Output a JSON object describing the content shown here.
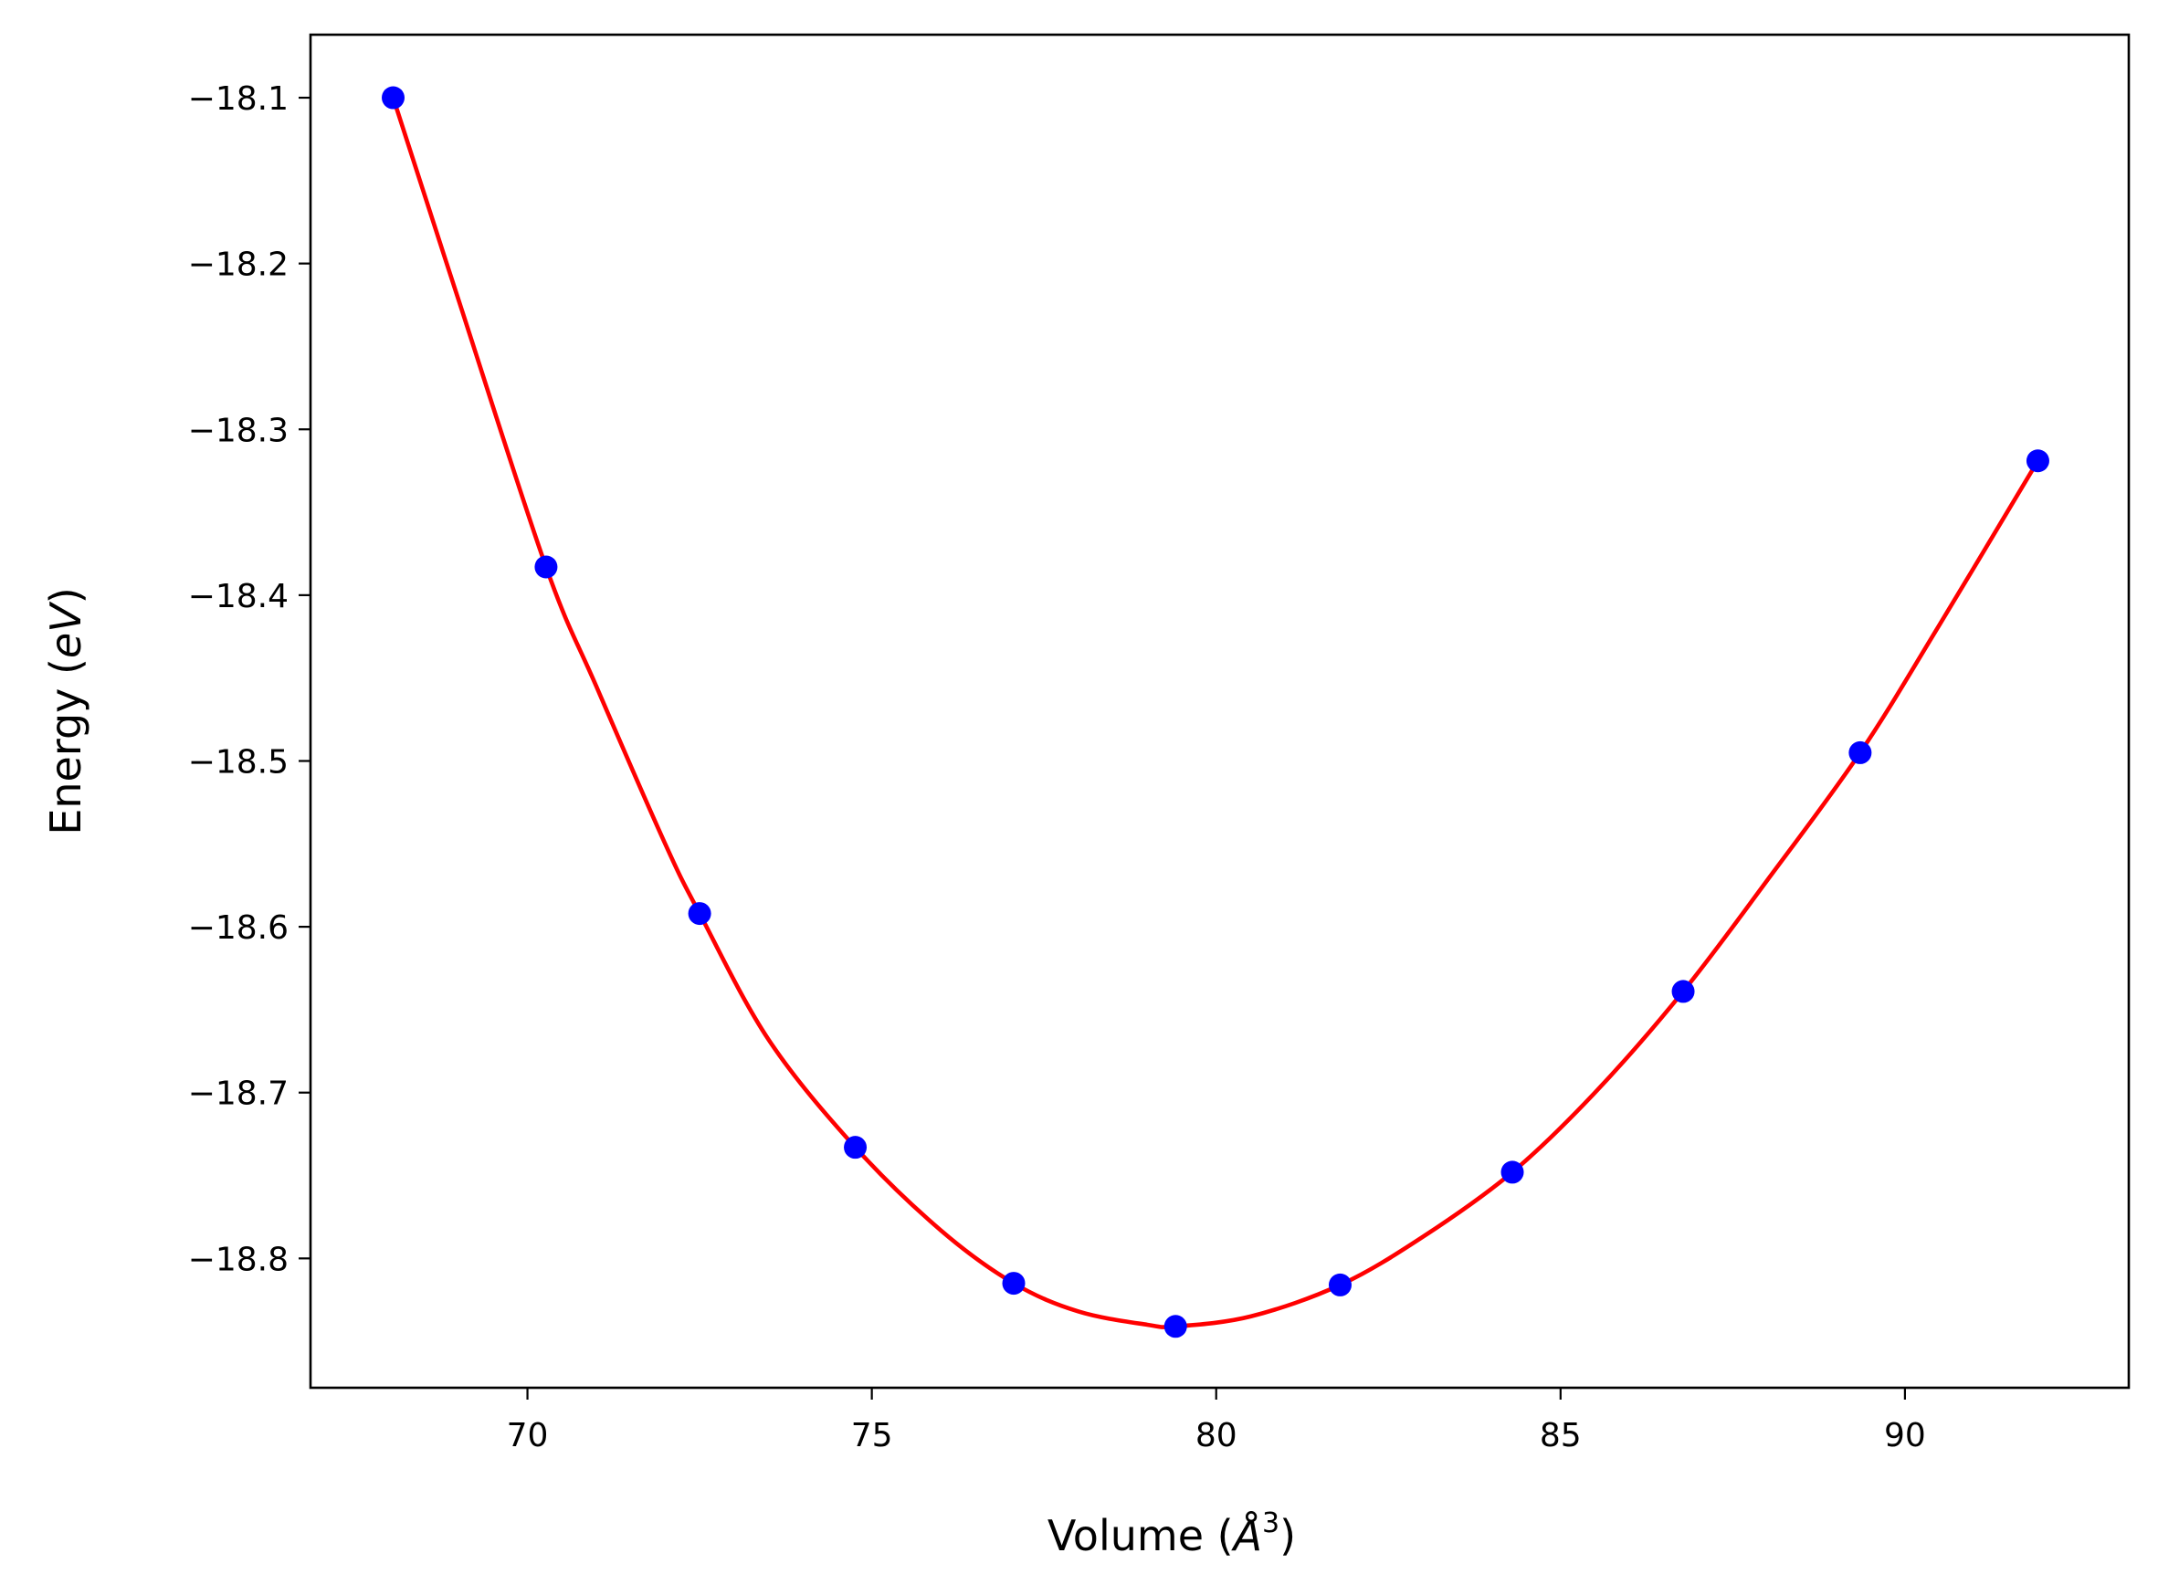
{
  "chart_data": {
    "type": "line",
    "title": "",
    "xlabel": {
      "text": "Volume (",
      "symbol": "Å",
      "sup": "3",
      "close": ")"
    },
    "ylabel": {
      "text": "Energy (",
      "symbol": "eV",
      "close": ")"
    },
    "xlim": [
      66.85,
      93.25
    ],
    "ylim": [
      -18.878,
      -18.062
    ],
    "xticks": [
      70,
      75,
      80,
      85,
      90
    ],
    "xtick_labels": [
      "70",
      "75",
      "80",
      "85",
      "90"
    ],
    "yticks": [
      -18.1,
      -18.2,
      -18.3,
      -18.4,
      -18.5,
      -18.6,
      -18.7,
      -18.8
    ],
    "ytick_labels": [
      "−18.1",
      "−18.2",
      "−18.3",
      "−18.4",
      "−18.5",
      "−18.6",
      "−18.7",
      "−18.8"
    ],
    "grid": false,
    "series": [
      {
        "kind": "markers",
        "color": "#0000ff",
        "x": [
          68.05,
          70.27,
          72.5,
          74.76,
          77.06,
          79.41,
          81.8,
          84.3,
          86.78,
          89.35,
          91.93
        ],
        "y": [
          -18.1,
          -18.383,
          -18.592,
          -18.733,
          -18.815,
          -18.841,
          -18.816,
          -18.748,
          -18.639,
          -18.495,
          -18.319
        ]
      },
      {
        "kind": "fit-curve",
        "color": "#ff0000",
        "x": [
          68.05,
          69.0,
          70.27,
          71.0,
          72.0,
          72.5,
          73.5,
          74.76,
          76.0,
          77.06,
          78.0,
          79.0,
          79.41,
          80.5,
          81.8,
          83.0,
          84.3,
          85.5,
          86.78,
          88.0,
          89.35,
          90.5,
          91.93
        ],
        "y": [
          -18.1,
          -18.222,
          -18.383,
          -18.455,
          -18.55,
          -18.592,
          -18.668,
          -18.733,
          -18.783,
          -18.815,
          -18.832,
          -18.84,
          -18.841,
          -18.835,
          -18.816,
          -18.787,
          -18.748,
          -18.7,
          -18.639,
          -18.572,
          -18.495,
          -18.418,
          -18.319
        ]
      }
    ]
  }
}
